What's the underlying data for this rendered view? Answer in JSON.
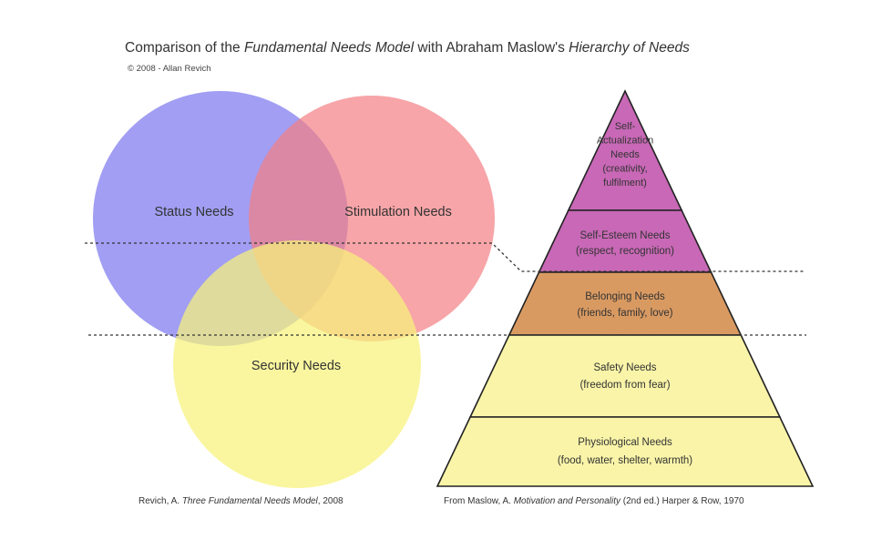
{
  "title": {
    "part1": "Comparison of the ",
    "italic1": "Fundamental Needs Model",
    "part2": " with Abraham Maslow's ",
    "italic2": "Hierarchy of Needs"
  },
  "copyright": "© 2008 - Allan Revich",
  "venn": {
    "status": {
      "label": "Status Needs",
      "color": "#8a86f0"
    },
    "stimulation": {
      "label": "Stimulation Needs",
      "color": "#f47f83"
    },
    "security": {
      "label": "Security Needs",
      "color": "#f7f27a"
    }
  },
  "pyramid": {
    "levels": [
      {
        "lines": [
          "Self-",
          "Actualization",
          "Needs",
          "(creativity,",
          "fulfilment)"
        ],
        "color": "#c868b6"
      },
      {
        "lines": [
          "Self-Esteem Needs",
          "(respect, recognition)"
        ],
        "color": "#c868b6"
      },
      {
        "lines": [
          "Belonging Needs",
          "(friends, family, love)"
        ],
        "color": "#d99a62"
      },
      {
        "lines": [
          "Safety Needs",
          "(freedom from fear)"
        ],
        "color": "#f9f4a8"
      },
      {
        "lines": [
          "Physiological Needs",
          "(food, water, shelter, warmth)"
        ],
        "color": "#f9f4a8"
      }
    ]
  },
  "captions": {
    "left": {
      "prefix": "Revich, A. ",
      "italic": "Three Fundamental Needs Model",
      "suffix": ", 2008"
    },
    "right": {
      "prefix": "From Maslow, A. ",
      "italic": "Motivation and Personality",
      "suffix": " (2nd ed.) Harper & Row, 1970"
    }
  }
}
